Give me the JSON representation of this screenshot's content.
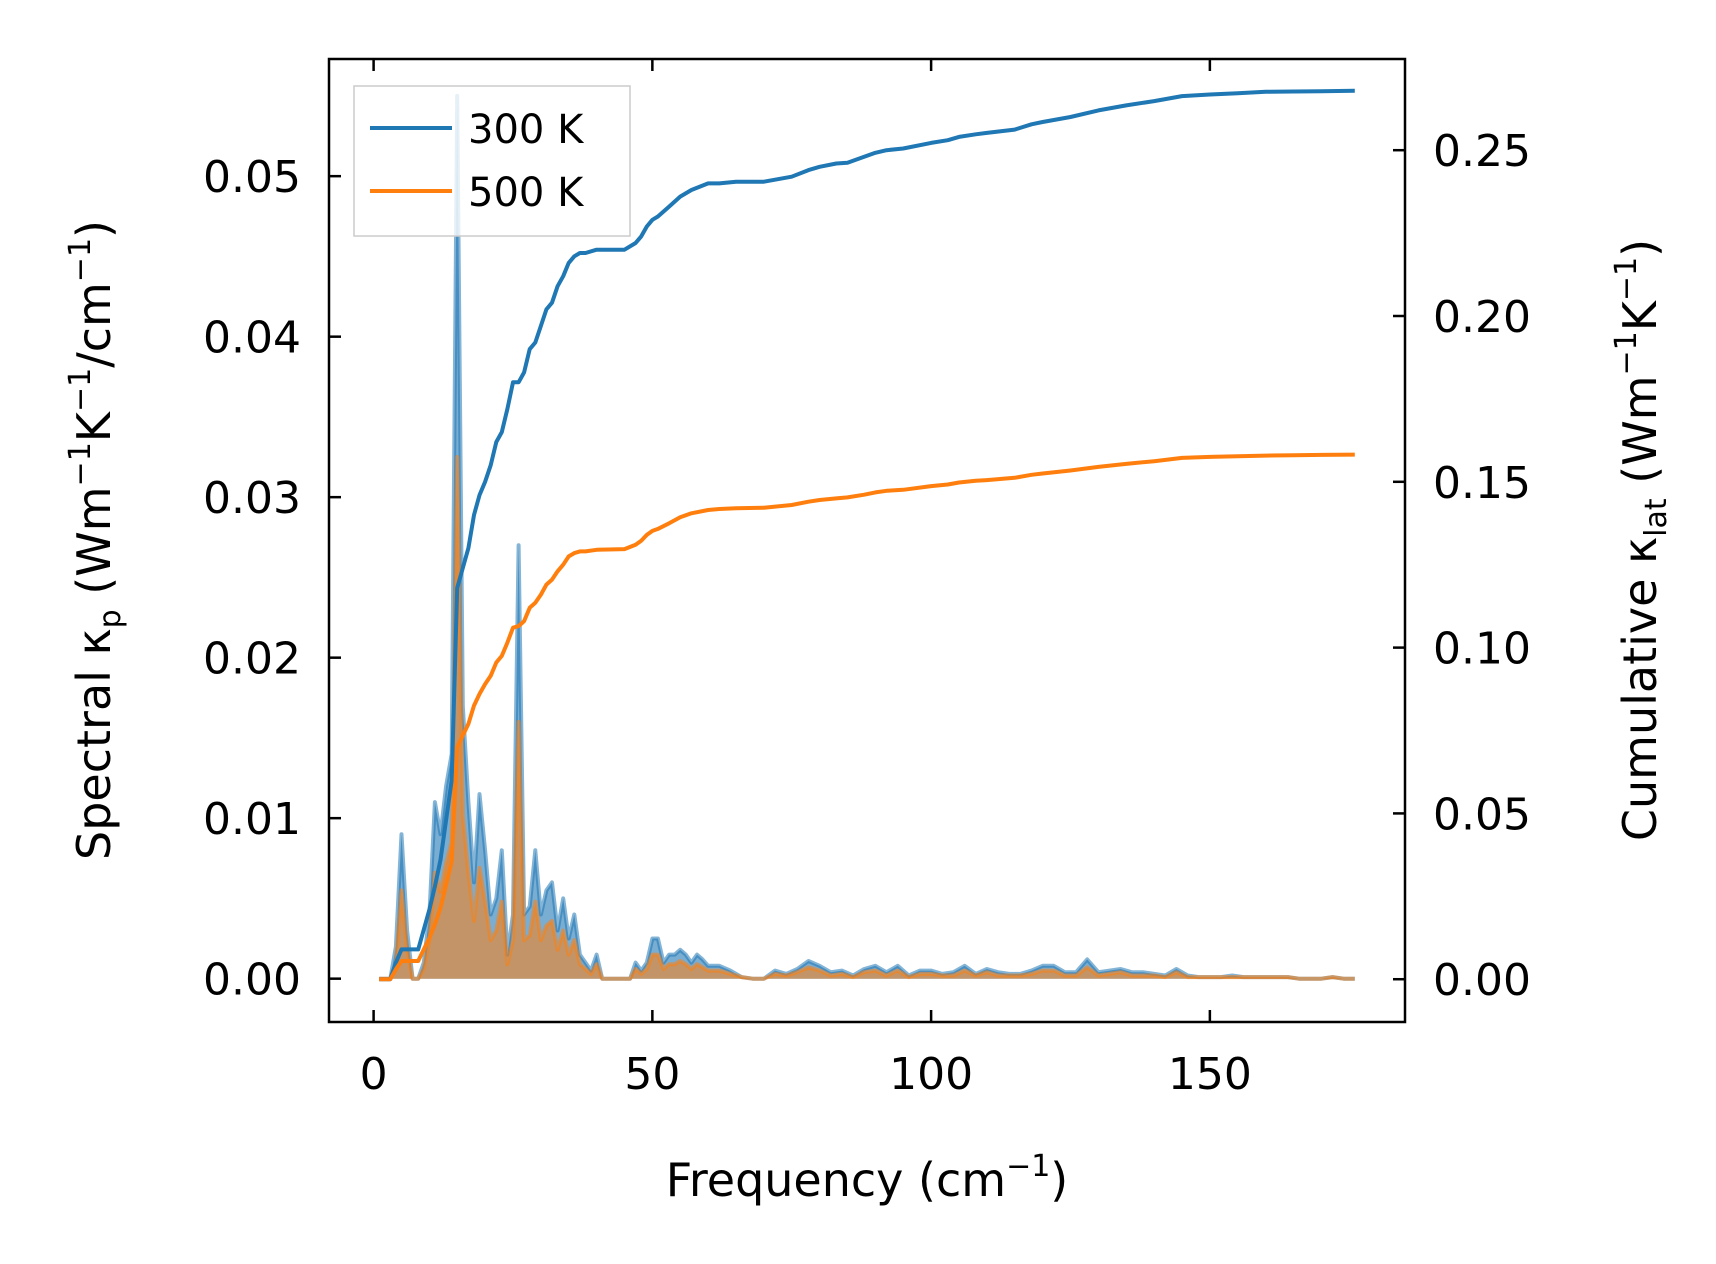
{
  "chart_data": {
    "type": "line",
    "x_axis": {
      "label": "Frequency (cm⁻¹)",
      "label_main": "Frequency (cm",
      "label_sup": "−1",
      "label_end": ")",
      "range": [
        -8,
        185
      ],
      "ticks": [
        0,
        50,
        100,
        150
      ],
      "tick_labels": [
        "0",
        "50",
        "100",
        "150"
      ]
    },
    "y_left_axis": {
      "label": "Spectral κp (Wm⁻¹K⁻¹/cm⁻¹)",
      "label_main": "Spectral κ",
      "label_sub": "p",
      "label_rest_1": " (Wm",
      "label_sup_1": "−1",
      "label_rest_2": "K",
      "label_sup_2": "−1",
      "label_rest_3": "/cm",
      "label_sup_3": "−1",
      "label_end": ")",
      "range": [
        -0.0027,
        0.0573
      ],
      "ticks": [
        0.0,
        0.01,
        0.02,
        0.03,
        0.04,
        0.05
      ],
      "tick_labels": [
        "0.00",
        "0.01",
        "0.02",
        "0.03",
        "0.04",
        "0.05"
      ]
    },
    "y_right_axis": {
      "label": "Cumulative κlat (Wm⁻¹K⁻¹)",
      "label_main": "Cumulative κ",
      "label_sub": "lat",
      "label_rest_1": " (Wm",
      "label_sup_1": "−1",
      "label_rest_2": "K",
      "label_sup_2": "−1",
      "label_end": ")",
      "range": [
        -0.0129,
        0.2775
      ],
      "ticks": [
        0.0,
        0.05,
        0.1,
        0.15,
        0.2,
        0.25
      ],
      "tick_labels": [
        "0.00",
        "0.05",
        "0.10",
        "0.15",
        "0.20",
        "0.25"
      ]
    },
    "legend": {
      "placement": "top-left",
      "entries": [
        {
          "label": "300 K",
          "color": "#1f77b4"
        },
        {
          "label": "500 K",
          "color": "#ff7f0e"
        }
      ]
    },
    "grid": false,
    "series": [
      {
        "name": "300 K",
        "color": "#1f77b4",
        "spectral": {
          "x": [
            1,
            3,
            4,
            5,
            6,
            7,
            8,
            9,
            10,
            11,
            12,
            13,
            14,
            15,
            16,
            17,
            18,
            19,
            20,
            21,
            22,
            23,
            24,
            25,
            26,
            27,
            28,
            29,
            30,
            31,
            32,
            33,
            34,
            35,
            36,
            37,
            38,
            39,
            40,
            41,
            42,
            44,
            46,
            47,
            48,
            49,
            50,
            51,
            52,
            53,
            54,
            55,
            56,
            57,
            58,
            59,
            60,
            62,
            64,
            66,
            68,
            70,
            72,
            74,
            76,
            78,
            80,
            82,
            84,
            86,
            88,
            90,
            92,
            94,
            96,
            98,
            100,
            102,
            104,
            106,
            108,
            110,
            112,
            114,
            116,
            118,
            120,
            122,
            124,
            126,
            128,
            130,
            132,
            134,
            136,
            138,
            140,
            142,
            144,
            146,
            148,
            150,
            152,
            154,
            156,
            158,
            160,
            162,
            164,
            166,
            168,
            170,
            172,
            174,
            176
          ],
          "y": [
            0.0,
            0.0,
            0.002,
            0.009,
            0.003,
            0.0,
            0.0,
            0.001,
            0.004,
            0.011,
            0.009,
            0.012,
            0.014,
            0.055,
            0.017,
            0.011,
            0.006,
            0.0115,
            0.008,
            0.004,
            0.005,
            0.008,
            0.0015,
            0.004,
            0.027,
            0.004,
            0.0045,
            0.008,
            0.004,
            0.0055,
            0.006,
            0.003,
            0.005,
            0.0025,
            0.004,
            0.0015,
            0.001,
            0.0005,
            0.0015,
            0.0,
            0.0,
            0.0,
            0.0,
            0.001,
            0.0005,
            0.001,
            0.0025,
            0.0025,
            0.001,
            0.0015,
            0.0015,
            0.0018,
            0.0015,
            0.001,
            0.0015,
            0.0012,
            0.0008,
            0.0008,
            0.0005,
            0.0001,
            0.0,
            0.0,
            0.0005,
            0.0003,
            0.0006,
            0.0011,
            0.0008,
            0.0004,
            0.0005,
            0.0002,
            0.0006,
            0.0008,
            0.0004,
            0.0008,
            0.0002,
            0.0005,
            0.0005,
            0.0003,
            0.0004,
            0.0008,
            0.0003,
            0.0006,
            0.0004,
            0.0003,
            0.0003,
            0.0005,
            0.0008,
            0.0008,
            0.0004,
            0.0004,
            0.0012,
            0.0004,
            0.0005,
            0.0006,
            0.0004,
            0.0004,
            0.0003,
            0.0002,
            0.0006,
            0.0002,
            0.0001,
            0.0001,
            0.0001,
            0.0002,
            0.0001,
            0.0001,
            0.0001,
            0.0001,
            0.0001,
            0.0,
            0.0,
            0.0,
            0.0001,
            0.0,
            0.0
          ]
        },
        "cumulative": {
          "x": [
            1,
            3,
            4,
            5,
            7,
            8,
            9,
            10,
            11,
            12,
            13,
            14,
            15,
            16,
            17,
            18,
            19,
            20,
            21,
            22,
            23,
            24,
            25,
            26,
            27,
            28,
            29,
            30,
            31,
            32,
            33,
            34,
            35,
            36,
            37,
            38,
            40,
            45,
            47,
            48,
            49,
            50,
            51,
            53,
            55,
            57,
            60,
            62,
            65,
            70,
            75,
            78,
            80,
            83,
            85,
            88,
            90,
            92,
            95,
            100,
            103,
            105,
            108,
            110,
            115,
            118,
            120,
            125,
            130,
            135,
            140,
            145,
            150,
            155,
            160,
            165,
            170,
            176
          ],
          "y": [
            0.0,
            0.0,
            0.005,
            0.009,
            0.009,
            0.009,
            0.015,
            0.021,
            0.028,
            0.036,
            0.048,
            0.06,
            0.118,
            0.124,
            0.13,
            0.14,
            0.146,
            0.15,
            0.155,
            0.162,
            0.165,
            0.172,
            0.18,
            0.18,
            0.183,
            0.19,
            0.192,
            0.197,
            0.202,
            0.204,
            0.209,
            0.212,
            0.216,
            0.218,
            0.219,
            0.219,
            0.22,
            0.22,
            0.222,
            0.224,
            0.227,
            0.229,
            0.23,
            0.233,
            0.236,
            0.238,
            0.24,
            0.24,
            0.2405,
            0.2405,
            0.242,
            0.244,
            0.245,
            0.246,
            0.2462,
            0.248,
            0.2492,
            0.25,
            0.2505,
            0.2522,
            0.253,
            0.254,
            0.2548,
            0.2552,
            0.2562,
            0.2578,
            0.2585,
            0.26,
            0.262,
            0.2635,
            0.2648,
            0.2663,
            0.2668,
            0.2672,
            0.2676,
            0.2677,
            0.2678,
            0.2679
          ]
        }
      },
      {
        "name": "500 K",
        "color": "#ff7f0e",
        "spectral": {
          "x": [
            1,
            3,
            4,
            5,
            6,
            7,
            8,
            9,
            10,
            11,
            12,
            13,
            14,
            15,
            16,
            17,
            18,
            19,
            20,
            21,
            22,
            23,
            24,
            25,
            26,
            27,
            28,
            29,
            30,
            31,
            32,
            33,
            34,
            35,
            36,
            37,
            38,
            39,
            40,
            41,
            42,
            44,
            46,
            47,
            48,
            49,
            50,
            51,
            52,
            53,
            54,
            55,
            56,
            57,
            58,
            59,
            60,
            62,
            64,
            66,
            68,
            70,
            72,
            74,
            76,
            78,
            80,
            82,
            84,
            86,
            88,
            90,
            92,
            94,
            96,
            98,
            100,
            102,
            104,
            106,
            108,
            110,
            112,
            114,
            116,
            118,
            120,
            122,
            124,
            126,
            128,
            130,
            132,
            134,
            136,
            138,
            140,
            142,
            144,
            146,
            148,
            150,
            152,
            154,
            156,
            158,
            160,
            162,
            164,
            166,
            168,
            170,
            172,
            174,
            176
          ],
          "y": [
            0.0,
            0.0,
            0.001,
            0.0055,
            0.0018,
            0.0,
            0.0,
            0.0006,
            0.0024,
            0.0066,
            0.0054,
            0.0072,
            0.0085,
            0.0325,
            0.0102,
            0.0066,
            0.0036,
            0.0069,
            0.0048,
            0.0024,
            0.003,
            0.0048,
            0.0009,
            0.0024,
            0.016,
            0.0024,
            0.0027,
            0.0048,
            0.0024,
            0.0033,
            0.0036,
            0.0018,
            0.003,
            0.0015,
            0.0024,
            0.0009,
            0.0006,
            0.0003,
            0.0009,
            0.0,
            0.0,
            0.0,
            0.0,
            0.0006,
            0.0003,
            0.0006,
            0.0015,
            0.0015,
            0.0006,
            0.0009,
            0.0009,
            0.0011,
            0.0009,
            0.0006,
            0.0009,
            0.0007,
            0.0005,
            0.0005,
            0.0003,
            0.0001,
            0.0,
            0.0,
            0.0003,
            0.0002,
            0.0004,
            0.0007,
            0.0005,
            0.0002,
            0.0003,
            0.0001,
            0.0004,
            0.0005,
            0.0002,
            0.0005,
            0.0001,
            0.0003,
            0.0003,
            0.0002,
            0.0002,
            0.0005,
            0.0002,
            0.0004,
            0.0002,
            0.0002,
            0.0002,
            0.0003,
            0.0005,
            0.0005,
            0.0002,
            0.0002,
            0.0007,
            0.0002,
            0.0003,
            0.0004,
            0.0002,
            0.0002,
            0.0002,
            0.0001,
            0.0004,
            0.0001,
            0.0001,
            0.0001,
            0.0001,
            0.0001,
            0.0001,
            0.0001,
            0.0001,
            0.0001,
            0.0001,
            0.0,
            0.0,
            0.0,
            0.0001,
            0.0,
            0.0
          ]
        },
        "cumulative": {
          "x": [
            1,
            3,
            4,
            5,
            7,
            8,
            9,
            10,
            11,
            12,
            13,
            14,
            15,
            16,
            17,
            18,
            19,
            20,
            21,
            22,
            23,
            24,
            25,
            26,
            27,
            28,
            29,
            30,
            31,
            32,
            33,
            34,
            35,
            36,
            37,
            38,
            40,
            45,
            47,
            48,
            49,
            50,
            51,
            53,
            55,
            57,
            60,
            62,
            65,
            70,
            75,
            78,
            80,
            83,
            85,
            88,
            90,
            92,
            95,
            100,
            103,
            105,
            108,
            110,
            115,
            118,
            120,
            125,
            130,
            135,
            140,
            145,
            150,
            155,
            160,
            165,
            170,
            176
          ],
          "y": [
            0.0,
            0.0,
            0.003,
            0.0055,
            0.0055,
            0.0055,
            0.009,
            0.0125,
            0.0165,
            0.0215,
            0.0285,
            0.0355,
            0.07,
            0.0735,
            0.077,
            0.0825,
            0.086,
            0.089,
            0.0915,
            0.0955,
            0.0975,
            0.1015,
            0.106,
            0.1065,
            0.108,
            0.112,
            0.1135,
            0.116,
            0.119,
            0.1205,
            0.123,
            0.125,
            0.1275,
            0.1285,
            0.129,
            0.129,
            0.1295,
            0.1297,
            0.131,
            0.1322,
            0.134,
            0.1352,
            0.1358,
            0.1375,
            0.1393,
            0.1405,
            0.1415,
            0.1418,
            0.142,
            0.1422,
            0.143,
            0.144,
            0.1445,
            0.145,
            0.1453,
            0.1461,
            0.1468,
            0.1473,
            0.1476,
            0.1487,
            0.1492,
            0.1498,
            0.1503,
            0.1505,
            0.1512,
            0.1521,
            0.1525,
            0.1534,
            0.1545,
            0.1554,
            0.1562,
            0.1572,
            0.1575,
            0.1577,
            0.1579,
            0.158,
            0.1581,
            0.1582
          ]
        }
      }
    ]
  }
}
